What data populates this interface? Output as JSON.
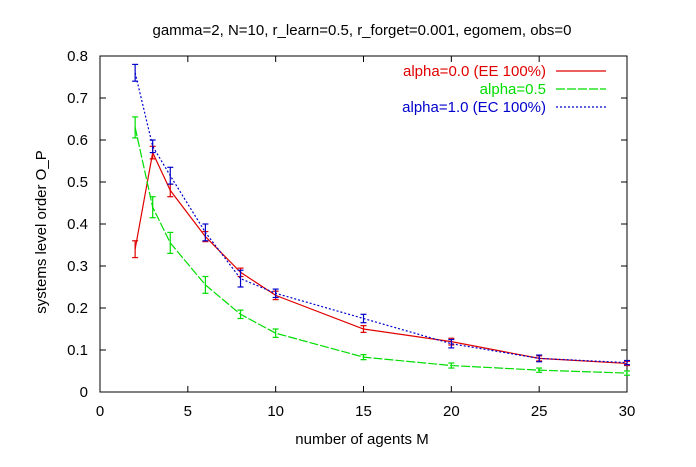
{
  "chart_data": {
    "type": "line",
    "title": "gamma=2, N=10, r_learn=0.5, r_forget=0.001, egomem, obs=0",
    "xlabel": "number of agents M",
    "ylabel": "systems level order O_P",
    "xlim": [
      0,
      30
    ],
    "ylim": [
      0,
      0.8
    ],
    "xticks": [
      0,
      5,
      10,
      15,
      20,
      25,
      30
    ],
    "yticks": [
      0,
      0.1,
      0.2,
      0.3,
      0.4,
      0.5,
      0.6,
      0.7,
      0.8
    ],
    "xtick_labels": [
      "0",
      "5",
      "10",
      "15",
      "20",
      "25",
      "30"
    ],
    "ytick_labels": [
      "0",
      "0.1",
      "0.2",
      "0.3",
      "0.4",
      "0.5",
      "0.6",
      "0.7",
      "0.8"
    ],
    "grid": false,
    "legend_position": "top-right",
    "x": [
      2,
      3,
      4,
      6,
      8,
      10,
      15,
      20,
      25,
      30
    ],
    "series": [
      {
        "name": "alpha=0.0 (EE 100%)",
        "color": "#e00000",
        "dash": "solid",
        "values": [
          0.34,
          0.57,
          0.48,
          0.37,
          0.285,
          0.23,
          0.15,
          0.12,
          0.08,
          0.068
        ],
        "errors": [
          0.02,
          0.015,
          0.015,
          0.012,
          0.01,
          0.01,
          0.008,
          0.008,
          0.006,
          0.005
        ]
      },
      {
        "name": "alpha=0.5",
        "color": "#00dd00",
        "dash": "long-dash",
        "values": [
          0.63,
          0.44,
          0.355,
          0.255,
          0.185,
          0.14,
          0.083,
          0.063,
          0.052,
          0.045
        ],
        "errors": [
          0.025,
          0.025,
          0.025,
          0.02,
          0.01,
          0.01,
          0.006,
          0.006,
          0.005,
          0.005
        ]
      },
      {
        "name": "alpha=1.0 (EC 100%)",
        "color": "#0000cc",
        "dash": "dotted",
        "values": [
          0.76,
          0.585,
          0.515,
          0.38,
          0.27,
          0.235,
          0.175,
          0.115,
          0.08,
          0.07
        ],
        "errors": [
          0.02,
          0.015,
          0.02,
          0.02,
          0.02,
          0.01,
          0.01,
          0.01,
          0.008,
          0.005
        ]
      }
    ]
  }
}
